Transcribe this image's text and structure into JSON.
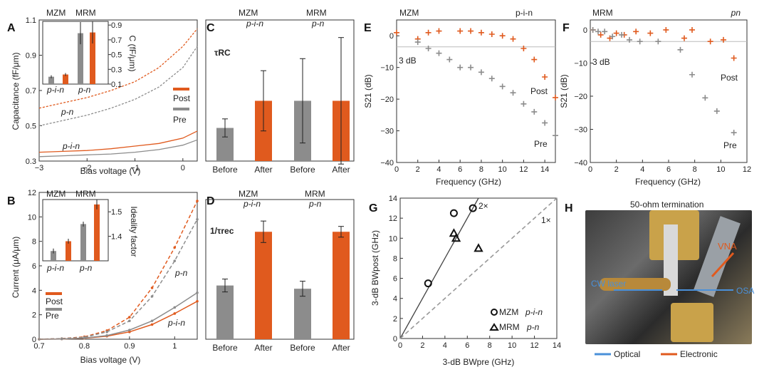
{
  "panels": {
    "A": {
      "letter": "A",
      "xlabel": "Bias voltage (V)",
      "ylabel": "Capacitance (fF/μm)",
      "xticks": [
        "−3",
        "−2",
        "−1",
        "0"
      ],
      "yticks": [
        "0.3",
        "0.5",
        "0.7",
        "0.9",
        "1.1"
      ],
      "curve_labels": [
        "p-n",
        "p-i-n"
      ],
      "legend": [
        "Post",
        "Pre"
      ],
      "inset": {
        "headers": [
          "MZM",
          "MRM"
        ],
        "ylabel": "C (fF/μm)",
        "yticks": [
          "0.1",
          "0.3",
          "0.5",
          "0.7",
          "0.9"
        ],
        "xlabels": [
          "p-i-n",
          "p-n"
        ]
      }
    },
    "B": {
      "letter": "B",
      "xlabel": "Bias voltage (V)",
      "ylabel": "Current (μA/μm)",
      "xticks": [
        "0.7",
        "0.8",
        "0.9",
        "1"
      ],
      "yticks": [
        "0",
        "2",
        "4",
        "6",
        "8",
        "10",
        "12"
      ],
      "curve_labels": [
        "p-n",
        "p-i-n"
      ],
      "legend": [
        "Post",
        "Pre"
      ],
      "inset": {
        "headers": [
          "MZM",
          "MRM"
        ],
        "ylabel": "Ideality factor",
        "yticks": [
          "1.4",
          "1.5"
        ],
        "xlabels": [
          "p-i-n",
          "p-n"
        ]
      }
    },
    "C": {
      "letter": "C",
      "headers": [
        "MZM",
        "MRM"
      ],
      "subheaders": [
        "p-i-n",
        "p-n"
      ],
      "metric": "τRC",
      "xlabels": [
        "Before",
        "After",
        "Before",
        "After"
      ]
    },
    "D": {
      "letter": "D",
      "headers": [
        "MZM",
        "MRM"
      ],
      "subheaders": [
        "p-i-n",
        "p-n"
      ],
      "metric": "1/τrec",
      "xlabels": [
        "Before",
        "After",
        "Before",
        "After"
      ]
    },
    "E": {
      "letter": "E",
      "header": "MZM",
      "tag": "p-i-n",
      "xlabel": "Frequency (GHz)",
      "ylabel": "S21 (dB)",
      "xticks": [
        "0",
        "2",
        "4",
        "6",
        "8",
        "10",
        "12",
        "14"
      ],
      "yticks": [
        "0",
        "−10",
        "−20",
        "−30",
        "−40"
      ],
      "annotations": [
        "3 dB",
        "Post",
        "Pre"
      ]
    },
    "F": {
      "letter": "F",
      "header": "MRM",
      "tag": "pn",
      "xlabel": "Frequency (GHz)",
      "ylabel": "S21 (dB)",
      "xticks": [
        "0",
        "2",
        "4",
        "6",
        "8",
        "10",
        "12"
      ],
      "yticks": [
        "0",
        "−10",
        "−20",
        "−30",
        "−40"
      ],
      "annotations": [
        "3 dB",
        "Post",
        "Pre"
      ]
    },
    "G": {
      "letter": "G",
      "xlabel": "3-dB BWpre (GHz)",
      "ylabel": "3-dB BWpost (GHz)",
      "xticks": [
        "0",
        "2",
        "4",
        "6",
        "8",
        "10",
        "12",
        "14"
      ],
      "yticks": [
        "0",
        "2",
        "4",
        "6",
        "8",
        "10",
        "12",
        "14"
      ],
      "lines": [
        "2×",
        "1×"
      ],
      "legend": [
        {
          "marker": "circle",
          "name": "MZM",
          "tag": "p-i-n"
        },
        {
          "marker": "triangle",
          "name": "MRM",
          "tag": "p-n"
        }
      ]
    },
    "H": {
      "letter": "H",
      "title": "50-ohm termination",
      "labels": [
        "VNA",
        "CW laser",
        "OSA"
      ],
      "legend": [
        "Optical",
        "Electronic"
      ]
    }
  },
  "colors": {
    "post": "#e05a1e",
    "pre": "#8c8c8c",
    "optical": "#4a90d9",
    "electronic": "#e05a1e"
  },
  "chart_data": [
    {
      "id": "A",
      "type": "line",
      "xlabel": "Bias voltage (V)",
      "ylabel": "Capacitance (fF/μm)",
      "xlim": [
        -3,
        0.3
      ],
      "ylim": [
        0.3,
        1.1
      ],
      "series": [
        {
          "name": "Post",
          "device": "p-n",
          "x": [
            -3,
            -2.5,
            -2,
            -1.5,
            -1,
            -0.5,
            0,
            0.3
          ],
          "y": [
            0.6,
            0.63,
            0.66,
            0.7,
            0.75,
            0.83,
            0.95,
            1.05
          ]
        },
        {
          "name": "Pre",
          "device": "p-n",
          "x": [
            -3,
            -2.5,
            -2,
            -1.5,
            -1,
            -0.5,
            0,
            0.3
          ],
          "y": [
            0.5,
            0.53,
            0.56,
            0.6,
            0.65,
            0.72,
            0.83,
            0.95
          ]
        },
        {
          "name": "Post",
          "device": "p-i-n",
          "x": [
            -3,
            -2.5,
            -2,
            -1.5,
            -1,
            -0.5,
            0,
            0.3
          ],
          "y": [
            0.35,
            0.355,
            0.36,
            0.37,
            0.385,
            0.4,
            0.43,
            0.47
          ]
        },
        {
          "name": "Pre",
          "device": "p-i-n",
          "x": [
            -3,
            -2.5,
            -2,
            -1.5,
            -1,
            -0.5,
            0,
            0.3
          ],
          "y": [
            0.325,
            0.33,
            0.335,
            0.34,
            0.35,
            0.365,
            0.39,
            0.42
          ]
        }
      ],
      "inset": {
        "type": "bar",
        "categories": [
          "p-i-n Pre",
          "p-i-n Post",
          "p-n Pre",
          "p-n Post"
        ],
        "values": [
          0.2,
          0.23,
          0.79,
          0.8
        ],
        "errors": [
          0.02,
          0.02,
          0.15,
          0.15
        ],
        "ylim": [
          0.1,
          0.95
        ]
      }
    },
    {
      "id": "B",
      "type": "line",
      "xlabel": "Bias voltage (V)",
      "ylabel": "Current (μA/μm)",
      "xlim": [
        0.7,
        1.05
      ],
      "ylim": [
        0,
        12
      ],
      "series": [
        {
          "name": "Post",
          "device": "p-n",
          "x": [
            0.7,
            0.75,
            0.8,
            0.85,
            0.9,
            0.95,
            1.0,
            1.05
          ],
          "y": [
            0,
            0.05,
            0.2,
            0.7,
            1.8,
            4.2,
            7.5,
            11.3
          ]
        },
        {
          "name": "Pre",
          "device": "p-n",
          "x": [
            0.7,
            0.75,
            0.8,
            0.85,
            0.9,
            0.95,
            1.0,
            1.05
          ],
          "y": [
            0,
            0.05,
            0.15,
            0.6,
            1.5,
            3.5,
            6.4,
            9.8
          ]
        },
        {
          "name": "Post",
          "device": "p-i-n",
          "x": [
            0.7,
            0.75,
            0.8,
            0.85,
            0.9,
            0.95,
            1.0,
            1.05
          ],
          "y": [
            0,
            0.02,
            0.08,
            0.25,
            0.6,
            1.2,
            2.1,
            3.1
          ]
        },
        {
          "name": "Pre",
          "device": "p-i-n",
          "x": [
            0.7,
            0.75,
            0.8,
            0.85,
            0.9,
            0.95,
            1.0,
            1.05
          ],
          "y": [
            0,
            0.02,
            0.1,
            0.3,
            0.75,
            1.5,
            2.6,
            3.8
          ]
        }
      ],
      "inset": {
        "type": "bar",
        "categories": [
          "p-i-n Pre",
          "p-i-n Post",
          "p-n Pre",
          "p-n Post"
        ],
        "values": [
          1.34,
          1.38,
          1.45,
          1.53
        ],
        "errors": [
          0.01,
          0.01,
          0.01,
          0.02
        ],
        "ylim": [
          1.3,
          1.55
        ]
      }
    },
    {
      "id": "C",
      "type": "bar",
      "categories": [
        "Before",
        "After",
        "Before",
        "After"
      ],
      "values": [
        0.55,
        1.0,
        1.0,
        1.0
      ],
      "errors": [
        0.15,
        0.5,
        0.7,
        1.05
      ]
    },
    {
      "id": "D",
      "type": "bar",
      "categories": [
        "Before",
        "After",
        "Before",
        "After"
      ],
      "values": [
        0.5,
        1.0,
        0.47,
        1.0
      ],
      "errors": [
        0.06,
        0.1,
        0.07,
        0.05
      ]
    },
    {
      "id": "E",
      "type": "scatter",
      "xlabel": "Frequency (GHz)",
      "ylabel": "S21 (dB)",
      "xlim": [
        0,
        15
      ],
      "ylim": [
        -40,
        5
      ],
      "series": [
        {
          "name": "Post",
          "x": [
            0,
            2,
            3,
            4,
            6,
            7,
            8,
            9,
            10,
            11,
            12,
            13,
            14,
            15
          ],
          "y": [
            1,
            -1,
            1,
            1.5,
            1.5,
            1.5,
            1,
            0.5,
            0,
            -1,
            -4,
            -7.5,
            -13,
            -19.5
          ]
        },
        {
          "name": "Pre",
          "x": [
            2,
            3,
            4,
            5,
            6,
            7,
            8,
            9,
            10,
            11,
            12,
            13,
            14,
            15
          ],
          "y": [
            -2,
            -4,
            -5.5,
            -7.5,
            -10,
            -10,
            -11.5,
            -13.5,
            -16,
            -18,
            -21.5,
            -24,
            -27.5,
            -31.5
          ]
        }
      ],
      "reference_line": {
        "label": "3 dB",
        "y": -3.5
      }
    },
    {
      "id": "F",
      "type": "scatter",
      "xlabel": "Frequency (GHz)",
      "ylabel": "S21 (dB)",
      "xlim": [
        0,
        12
      ],
      "ylim": [
        -40,
        3
      ],
      "series": [
        {
          "name": "Post",
          "x": [
            0.2,
            0.8,
            1.5,
            2,
            2.6,
            3.5,
            4.6,
            5.8,
            7.2,
            7.8,
            9.2,
            10.2,
            11
          ],
          "y": [
            0,
            -1.5,
            -2.5,
            -1,
            -1.5,
            -0.5,
            -1,
            0,
            -2.5,
            0,
            -3.5,
            -3,
            -8.5
          ]
        },
        {
          "name": "Pre",
          "x": [
            0.2,
            0.6,
            1.1,
            1.7,
            2.4,
            3,
            3.8,
            5.2,
            6.9,
            7.8,
            8.8,
            9.7,
            11
          ],
          "y": [
            0,
            -0.5,
            -0.5,
            -2,
            -1.5,
            -3,
            -3.5,
            -3.5,
            -6,
            -13.5,
            -20.5,
            -24.5,
            -31
          ]
        }
      ],
      "reference_line": {
        "label": "3 dB",
        "y": -3.5
      }
    },
    {
      "id": "G",
      "type": "scatter",
      "xlabel": "3-dB BWpre (GHz)",
      "ylabel": "3-dB BWpost (GHz)",
      "xlim": [
        0,
        14
      ],
      "ylim": [
        0,
        14
      ],
      "series": [
        {
          "name": "MZM",
          "marker": "circle",
          "x": [
            2.5,
            4.8,
            6.5
          ],
          "y": [
            5.5,
            12.5,
            13
          ]
        },
        {
          "name": "MRM",
          "marker": "triangle",
          "x": [
            4.8,
            5,
            7
          ],
          "y": [
            10.5,
            10,
            9
          ]
        }
      ],
      "reference_lines": [
        {
          "label": "2×",
          "slope": 2
        },
        {
          "label": "1×",
          "slope": 1
        }
      ]
    }
  ]
}
